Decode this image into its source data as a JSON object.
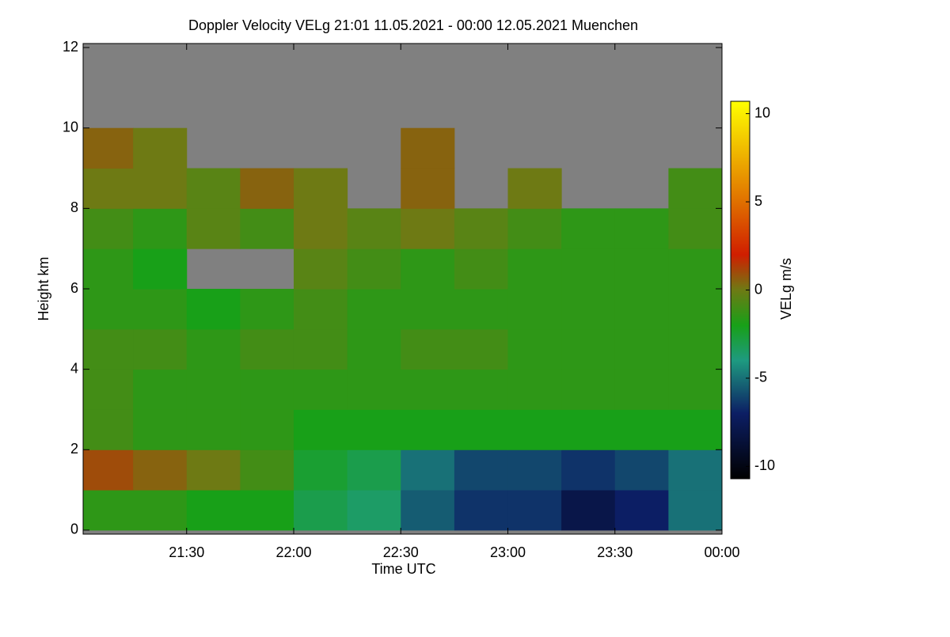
{
  "chart_data": {
    "type": "heatmap",
    "title": "Doppler Velocity VELg   21:01 11.05.2021 - 00:00 12.05.2021 Muenchen",
    "x_label": "Time UTC",
    "y_label": "Height km",
    "colorbar_label": "VELg m/s",
    "xlim": [
      21.0167,
      24.0
    ],
    "xticks": [
      {
        "value": 21.5,
        "label": "21:30"
      },
      {
        "value": 22,
        "label": "22:00"
      },
      {
        "value": 22.5,
        "label": "22:30"
      },
      {
        "value": 23,
        "label": "23:00"
      },
      {
        "value": 23.5,
        "label": "23:30"
      },
      {
        "value": 24,
        "label": "00:00"
      }
    ],
    "ylim": [
      -0.1,
      12.1
    ],
    "yticks": [
      0,
      2,
      4,
      6,
      8,
      10,
      12
    ],
    "zlim": [
      -10.7,
      10.7
    ],
    "zticks": [
      -10,
      -5,
      0,
      5,
      10
    ],
    "missing_color": "#808080",
    "colorscale": [
      [
        -10.7,
        "#000000"
      ],
      [
        -7,
        "#0c1e64"
      ],
      [
        -4,
        "#1e9a80"
      ],
      [
        -2,
        "#18a018"
      ],
      [
        0,
        "#6e7a14"
      ],
      [
        2,
        "#d01e00"
      ],
      [
        5,
        "#e07000"
      ],
      [
        10.7,
        "#ffff00"
      ]
    ],
    "x": [
      21.125,
      21.375,
      21.625,
      21.875,
      22.125,
      22.375,
      22.625,
      22.875,
      23.125,
      23.375,
      23.625,
      23.875
    ],
    "y": [
      0.5,
      1.5,
      2.5,
      3.5,
      4.5,
      5.5,
      6.5,
      7.5,
      8.5,
      9.5,
      10.5,
      11.5
    ],
    "z": [
      [
        -1.5,
        -1.5,
        -2,
        -2,
        -3,
        -3.5,
        -5.5,
        -6.5,
        -6.5,
        -8,
        -7,
        -5
      ],
      [
        1,
        0.5,
        0,
        -1,
        -2.5,
        -3,
        -5,
        -6,
        -6,
        -6.5,
        -6,
        -5
      ],
      [
        -1,
        -1.5,
        -1.5,
        -1.5,
        -2,
        -2,
        -2,
        -2,
        -2,
        -2,
        -2,
        -2
      ],
      [
        -1,
        -1.5,
        -1.5,
        -1.5,
        -1.5,
        -1.5,
        -1.5,
        -1.5,
        -1.5,
        -1.5,
        -1.5,
        -1.5
      ],
      [
        -1,
        -1,
        -1.5,
        -1,
        -1,
        -1.5,
        -1,
        -1,
        -1.5,
        -1.5,
        -1.5,
        -1.5
      ],
      [
        -1.5,
        -1.5,
        -2,
        -1.5,
        -1,
        -1.5,
        -1.5,
        -1.5,
        -1.5,
        -1.5,
        -1.5,
        -1.5
      ],
      [
        -1.5,
        -2,
        null,
        null,
        -0.5,
        -1,
        -1.5,
        -1,
        -1.5,
        -1.5,
        -1.5,
        -1.5
      ],
      [
        -1,
        -1.5,
        -0.5,
        -1,
        0,
        -0.5,
        0,
        -0.5,
        -1,
        -1.5,
        -1.5,
        -1
      ],
      [
        0,
        0,
        -0.5,
        0.5,
        0,
        null,
        0.5,
        null,
        0,
        null,
        null,
        -1
      ],
      [
        0.5,
        0,
        null,
        null,
        null,
        null,
        0.5,
        null,
        null,
        null,
        null,
        null
      ],
      [
        null,
        null,
        null,
        null,
        null,
        null,
        null,
        null,
        null,
        null,
        null,
        null
      ],
      [
        null,
        null,
        null,
        null,
        null,
        null,
        null,
        null,
        null,
        null,
        null,
        null
      ]
    ]
  }
}
